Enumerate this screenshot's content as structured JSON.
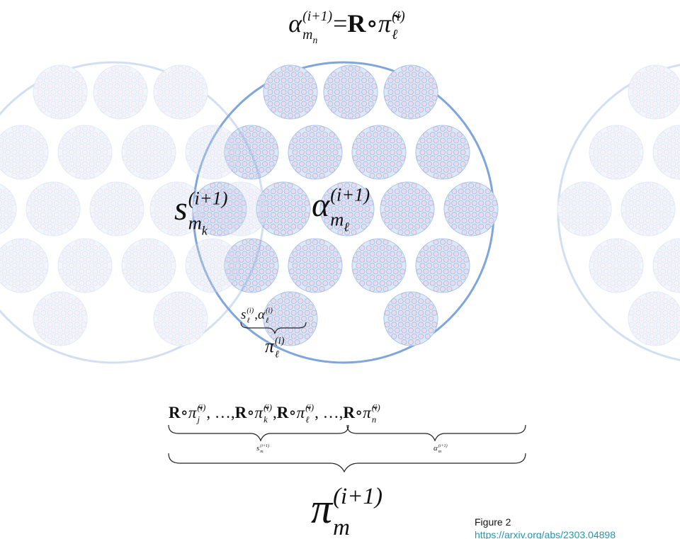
{
  "top_formula": [
    {
      "base": "α",
      "sup": "(i+1)",
      "sub": "m",
      "subsub": "n"
    },
    {
      "text": " = "
    },
    {
      "bold": "R"
    },
    {
      "text": " ∘ "
    },
    {
      "base": "π̃",
      "sup": "(i)",
      "sub": "ℓ"
    }
  ],
  "left_label": {
    "base": "s",
    "sup": "(i+1)",
    "sub": "m",
    "subsub": "k"
  },
  "center_label": {
    "base": "α",
    "sup": "(i+1)",
    "sub": "m",
    "subsub": "ℓ"
  },
  "pair_label": [
    {
      "base": "s",
      "sup": "(i)",
      "sub": "ℓ"
    },
    {
      "text": ", "
    },
    {
      "base": "α",
      "sup": "(i)",
      "sub": "ℓ"
    }
  ],
  "pi_label": {
    "base": "π",
    "sup": "(i)",
    "sub": "ℓ"
  },
  "bottom_formula": [
    {
      "bold": "R"
    },
    {
      "text": " ∘ "
    },
    {
      "base": "π̃",
      "sup": "(i)",
      "sub": "j"
    },
    {
      "text": ", …, "
    },
    {
      "bold": "R"
    },
    {
      "text": " ∘ "
    },
    {
      "base": "π̃",
      "sup": "(i)",
      "sub": "k"
    },
    {
      "text": " , "
    },
    {
      "bold": "R"
    },
    {
      "text": " ∘ "
    },
    {
      "base": "π̃",
      "sup": "(i)",
      "sub": "ℓ"
    },
    {
      "text": ", …, "
    },
    {
      "bold": "R"
    },
    {
      "text": " ∘ "
    },
    {
      "base": "π̃",
      "sup": "(i)",
      "sub": "n"
    }
  ],
  "brace_left_label": {
    "base": "s",
    "sup": "(i+1)",
    "sub": "m"
  },
  "brace_right_label": {
    "base": "α",
    "sup": "(i+1)",
    "sub": "m"
  },
  "result_label": {
    "base": "π",
    "sup": "(i+1)",
    "sub": "m"
  },
  "caption": {
    "figure": "Figure 2",
    "link": "https://arxiv.org/abs/2303.04898"
  }
}
